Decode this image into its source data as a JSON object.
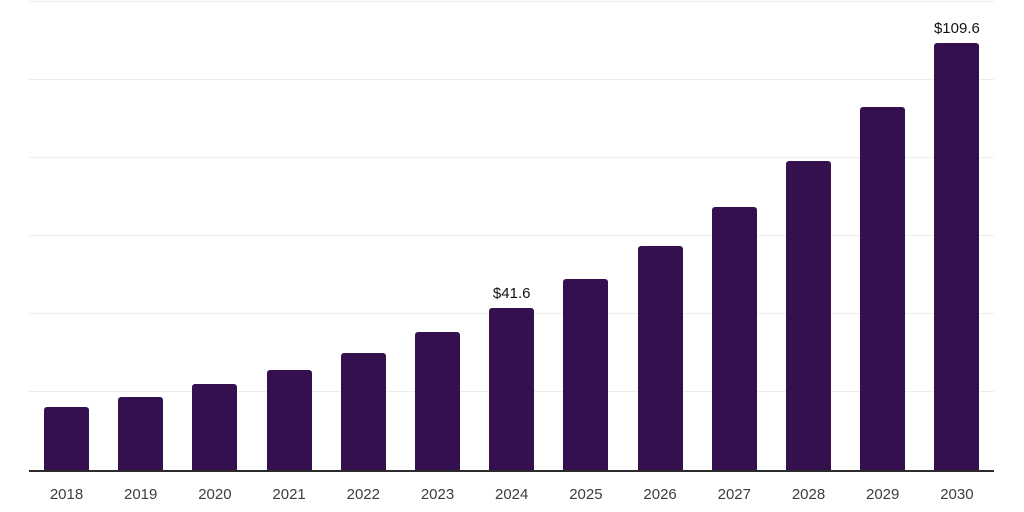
{
  "chart_data": {
    "type": "bar",
    "title": "",
    "xlabel": "",
    "ylabel": "",
    "categories": [
      "2018",
      "2019",
      "2020",
      "2021",
      "2022",
      "2023",
      "2024",
      "2025",
      "2026",
      "2027",
      "2028",
      "2029",
      "2030"
    ],
    "values": [
      16.1,
      18.7,
      22.0,
      25.6,
      30.0,
      35.3,
      41.6,
      48.9,
      57.4,
      67.5,
      79.3,
      93.1,
      109.6
    ],
    "data_labels": {
      "2024": "$41.6",
      "2030": "$109.6"
    },
    "ylim": [
      0,
      120
    ],
    "grid_step": 20,
    "grid": "horizontal-only",
    "legend_position": "none",
    "y_tick_labels_visible": false,
    "colors": {
      "bar": "#34114E",
      "gridline": "#EDEDED",
      "axis_line": "#2B2B2B",
      "x_tick_label": "#3D3D3D",
      "data_label": "#111111",
      "background": "#FFFFFF"
    }
  }
}
